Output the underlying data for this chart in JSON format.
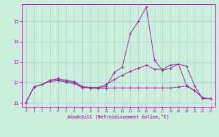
{
  "xlabel": "Windchill (Refroidissement éolien,°C)",
  "bg_color": "#cceedd",
  "line_color": "#993399",
  "grid_color": "#aacccc",
  "xlim_min": -0.5,
  "xlim_max": 23.5,
  "ylim_min": 10.8,
  "ylim_max": 15.85,
  "yticks": [
    11,
    12,
    13,
    14,
    15
  ],
  "xticks": [
    0,
    1,
    2,
    3,
    4,
    5,
    6,
    7,
    8,
    9,
    10,
    11,
    12,
    13,
    14,
    15,
    16,
    17,
    18,
    19,
    20,
    21,
    22,
    23
  ],
  "series1_x": [
    0,
    1,
    2,
    3,
    4,
    5,
    6,
    7,
    8,
    9,
    10,
    11,
    12,
    13,
    14,
    15,
    16,
    17,
    18,
    19,
    20,
    21,
    22,
    23
  ],
  "series1_y": [
    11.0,
    11.78,
    11.9,
    12.1,
    12.2,
    12.1,
    12.05,
    11.8,
    11.75,
    11.75,
    11.8,
    12.5,
    12.75,
    14.4,
    15.0,
    15.7,
    13.1,
    12.6,
    12.7,
    12.9,
    12.8,
    11.85,
    11.2,
    11.2
  ],
  "series2_x": [
    0,
    1,
    2,
    3,
    4,
    5,
    6,
    7,
    8,
    9,
    10,
    11,
    12,
    13,
    14,
    15,
    16,
    17,
    18,
    19,
    20,
    21,
    22,
    23
  ],
  "series2_y": [
    11.0,
    11.78,
    11.9,
    12.1,
    12.15,
    12.05,
    12.0,
    11.78,
    11.75,
    11.75,
    11.9,
    12.15,
    12.35,
    12.55,
    12.7,
    12.85,
    12.65,
    12.65,
    12.85,
    12.9,
    11.85,
    11.6,
    11.25,
    11.2
  ],
  "series3_x": [
    0,
    1,
    2,
    3,
    4,
    5,
    6,
    7,
    8,
    9,
    10,
    11,
    12,
    13,
    14,
    15,
    16,
    17,
    18,
    19,
    20,
    21,
    22,
    23
  ],
  "series3_y": [
    11.0,
    11.78,
    11.9,
    12.05,
    12.1,
    12.0,
    11.95,
    11.75,
    11.72,
    11.7,
    11.72,
    11.73,
    11.73,
    11.73,
    11.73,
    11.73,
    11.73,
    11.73,
    11.73,
    11.78,
    11.82,
    11.6,
    11.25,
    11.2
  ]
}
